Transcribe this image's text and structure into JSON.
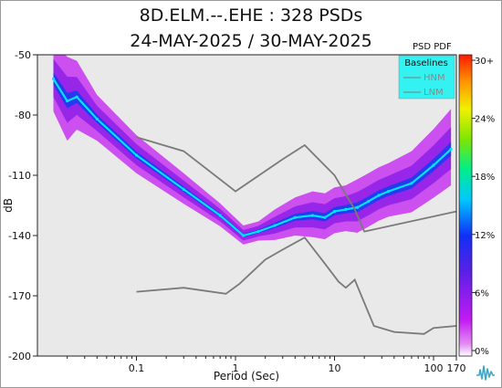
{
  "title": "8D.ELM.--.EHE : 328 PSDs",
  "subtitle": "24-MAY-2025 / 30-MAY-2025",
  "colorbar_title": "PSD PDF",
  "colors": {
    "plot_background": "#e9e9e9",
    "legend_background": "#34f2f2",
    "baseline_line": "#7a7a7a",
    "psd_outer": "#c21bf2",
    "psd_inner": "#8a1be6",
    "psd_core": "#1a3cf0",
    "psd_mode": "#00e5ff"
  },
  "chart_data": {
    "type": "heatmap",
    "xlabel": "Period (Sec)",
    "ylabel": "dB",
    "x_scale": "log",
    "xlim": [
      0.01,
      170
    ],
    "ylim": [
      -200,
      -50
    ],
    "x_ticks": [
      "0.1",
      "1",
      "10",
      "100",
      "170"
    ],
    "y_ticks": [
      "-50",
      "-80",
      "-110",
      "-140",
      "-170",
      "-200"
    ],
    "legend": {
      "title": "Baselines",
      "entries": [
        "HNM",
        "LNM"
      ],
      "placement": "top-right"
    },
    "colorbar": {
      "title": "PSD PDF",
      "ticks": [
        "30+",
        "24%",
        "18%",
        "12%",
        "6%",
        "0%"
      ]
    },
    "series": [
      {
        "name": "HNM",
        "x": [
          0.1,
          0.3,
          1,
          3,
          5,
          10,
          16,
          20,
          170
        ],
        "y": [
          -91,
          -98,
          -118,
          -102,
          -95,
          -110,
          -127,
          -138,
          -128
        ]
      },
      {
        "name": "LNM",
        "x": [
          0.1,
          0.3,
          0.8,
          1.1,
          2,
          3,
          5,
          8,
          11,
          13,
          16,
          25,
          40,
          80,
          100,
          170
        ],
        "y": [
          -168,
          -166,
          -169,
          -164,
          -152,
          -147,
          -141,
          -154,
          -163,
          -166,
          -162,
          -185,
          -188,
          -189,
          -186,
          -185
        ]
      }
    ],
    "pdf_mode": {
      "x": [
        0.0145,
        0.02,
        0.025,
        0.04,
        0.1,
        0.3,
        0.7,
        1.2,
        1.7,
        2.5,
        4,
        6,
        8,
        10,
        13,
        17,
        22,
        28,
        35,
        60,
        100,
        150
      ],
      "y": [
        -62,
        -73,
        -71,
        -82,
        -100,
        -117,
        -130,
        -140,
        -138,
        -135,
        -131,
        -130,
        -131,
        -128,
        -127,
        -126,
        -123,
        -120,
        -118,
        -114,
        -105,
        -97
      ]
    },
    "pdf_spread_db": [
      18,
      22,
      18,
      12,
      10,
      8,
      6,
      5,
      5,
      8,
      10,
      12,
      12,
      12,
      12,
      14,
      14,
      14,
      14,
      16,
      18,
      20
    ]
  }
}
